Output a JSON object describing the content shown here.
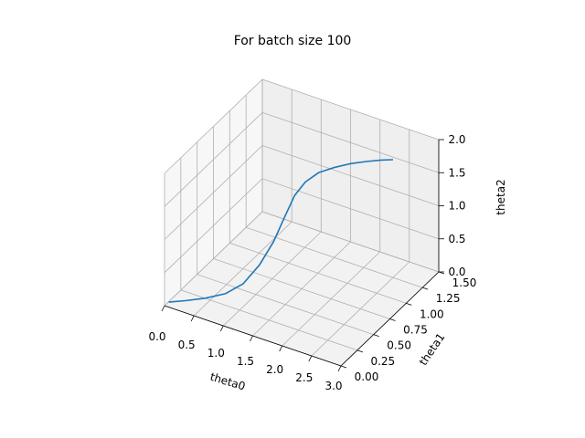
{
  "chart_data": {
    "type": "line3d",
    "title": "For batch size 100",
    "xlabel": "theta0",
    "ylabel": "theta1",
    "zlabel": "theta2",
    "xlim": [
      0.0,
      3.0
    ],
    "ylim": [
      0.0,
      1.5
    ],
    "zlim": [
      0.0,
      2.0
    ],
    "x_ticks": [
      "0.0",
      "0.5",
      "1.0",
      "1.5",
      "2.0",
      "2.5",
      "3.0"
    ],
    "y_ticks": [
      "0.00",
      "0.25",
      "0.50",
      "0.75",
      "1.00",
      "1.25",
      "1.50"
    ],
    "z_ticks": [
      "0.0",
      "0.5",
      "1.0",
      "1.5",
      "2.0"
    ],
    "grid": true,
    "series": [
      {
        "color": "#1f77b4",
        "points": [
          [
            0.05,
            0.02,
            0.05
          ],
          [
            0.3,
            0.05,
            0.12
          ],
          [
            0.6,
            0.08,
            0.22
          ],
          [
            0.9,
            0.12,
            0.34
          ],
          [
            1.15,
            0.17,
            0.52
          ],
          [
            1.35,
            0.24,
            0.8
          ],
          [
            1.5,
            0.32,
            1.12
          ],
          [
            1.6,
            0.4,
            1.45
          ],
          [
            1.68,
            0.48,
            1.72
          ],
          [
            1.75,
            0.58,
            1.85
          ],
          [
            1.82,
            0.72,
            1.88
          ],
          [
            1.9,
            0.88,
            1.83
          ],
          [
            2.0,
            1.05,
            1.76
          ],
          [
            2.1,
            1.2,
            1.68
          ],
          [
            2.2,
            1.34,
            1.6
          ],
          [
            2.3,
            1.43,
            1.55
          ]
        ]
      }
    ]
  }
}
